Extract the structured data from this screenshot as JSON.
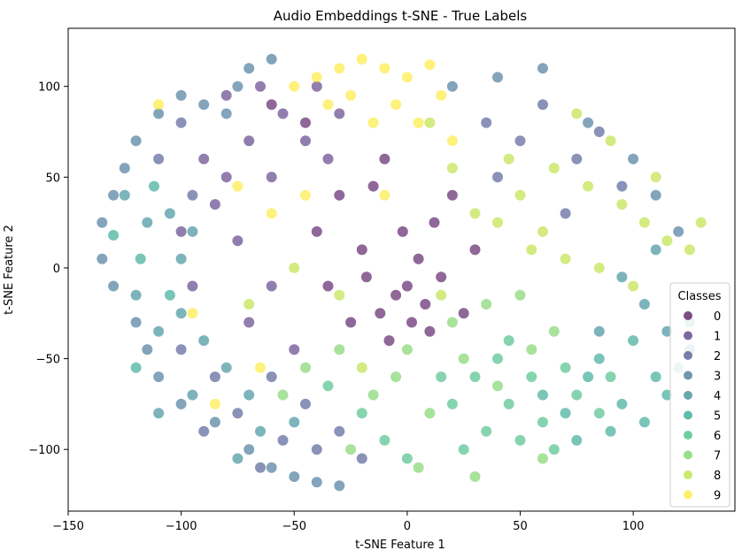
{
  "chart_data": {
    "type": "scatter",
    "title": "Audio Embeddings t-SNE - True Labels",
    "xlabel": "t-SNE Feature 1",
    "ylabel": "t-SNE Feature 2",
    "xlim": [
      -150,
      145
    ],
    "ylim": [
      -134,
      132
    ],
    "xticks": [
      -150,
      -100,
      -50,
      0,
      50,
      100
    ],
    "yticks": [
      -100,
      -50,
      0,
      50,
      100
    ],
    "xtick_labels": [
      "−150",
      "−100",
      "−50",
      "0",
      "50",
      "100"
    ],
    "ytick_labels": [
      "−100",
      "−50",
      "0",
      "50",
      "100"
    ],
    "grid": false,
    "point_alpha": 0.6,
    "legend": {
      "title": "Classes",
      "placement": "lower-right",
      "entries": [
        "0",
        "1",
        "2",
        "3",
        "4",
        "5",
        "6",
        "7",
        "8",
        "9"
      ]
    },
    "colormap": "viridis",
    "class_colors": [
      "#440154",
      "#482878",
      "#3e4989",
      "#31688e",
      "#26828e",
      "#1f9e89",
      "#35b779",
      "#6ece58",
      "#b5de2b",
      "#fde725"
    ],
    "series": [
      {
        "name": "0",
        "points": [
          [
            -5,
            -15
          ],
          [
            -12,
            -25
          ],
          [
            2,
            -30
          ],
          [
            -18,
            -5
          ],
          [
            8,
            -20
          ],
          [
            -30,
            40
          ],
          [
            -10,
            60
          ],
          [
            12,
            25
          ],
          [
            -20,
            10
          ],
          [
            5,
            5
          ],
          [
            -8,
            -40
          ],
          [
            15,
            -5
          ],
          [
            -25,
            -30
          ],
          [
            20,
            40
          ],
          [
            -45,
            80
          ],
          [
            -60,
            90
          ],
          [
            -2,
            20
          ],
          [
            25,
            -25
          ],
          [
            -15,
            45
          ],
          [
            30,
            10
          ],
          [
            -35,
            -10
          ],
          [
            10,
            -35
          ],
          [
            -40,
            20
          ],
          [
            0,
            -10
          ]
        ]
      },
      {
        "name": "1",
        "points": [
          [
            -65,
            100
          ],
          [
            -80,
            95
          ],
          [
            -55,
            85
          ],
          [
            -70,
            70
          ],
          [
            -90,
            60
          ],
          [
            -85,
            35
          ],
          [
            -60,
            50
          ],
          [
            -75,
            15
          ],
          [
            -45,
            70
          ],
          [
            -40,
            100
          ],
          [
            -95,
            -10
          ],
          [
            -70,
            -30
          ],
          [
            -50,
            -45
          ],
          [
            -30,
            85
          ],
          [
            -100,
            20
          ],
          [
            -60,
            -10
          ],
          [
            -80,
            50
          ],
          [
            -35,
            60
          ]
        ]
      },
      {
        "name": "2",
        "points": [
          [
            -100,
            80
          ],
          [
            -110,
            60
          ],
          [
            -95,
            40
          ],
          [
            -85,
            -60
          ],
          [
            -75,
            -80
          ],
          [
            -55,
            -95
          ],
          [
            -45,
            -75
          ],
          [
            -60,
            -60
          ],
          [
            -40,
            -100
          ],
          [
            -20,
            -105
          ],
          [
            -30,
            -90
          ],
          [
            -100,
            -45
          ],
          [
            -65,
            -110
          ],
          [
            -90,
            -90
          ],
          [
            35,
            80
          ],
          [
            50,
            70
          ],
          [
            60,
            90
          ],
          [
            75,
            60
          ],
          [
            85,
            75
          ],
          [
            40,
            50
          ],
          [
            70,
            30
          ],
          [
            95,
            45
          ]
        ]
      },
      {
        "name": "3",
        "points": [
          [
            -120,
            70
          ],
          [
            -110,
            85
          ],
          [
            -100,
            95
          ],
          [
            -90,
            90
          ],
          [
            -80,
            85
          ],
          [
            -75,
            100
          ],
          [
            -70,
            110
          ],
          [
            -60,
            115
          ],
          [
            -125,
            55
          ],
          [
            -130,
            40
          ],
          [
            -135,
            25
          ],
          [
            -135,
            5
          ],
          [
            -130,
            -10
          ],
          [
            -120,
            -30
          ],
          [
            -115,
            -45
          ],
          [
            -110,
            -60
          ],
          [
            -100,
            -75
          ],
          [
            -85,
            -85
          ],
          [
            -70,
            -100
          ],
          [
            -60,
            -110
          ],
          [
            -50,
            -115
          ],
          [
            -40,
            -118
          ],
          [
            -30,
            -120
          ],
          [
            20,
            100
          ],
          [
            40,
            105
          ],
          [
            60,
            110
          ],
          [
            80,
            80
          ],
          [
            100,
            60
          ],
          [
            110,
            40
          ],
          [
            120,
            20
          ]
        ]
      },
      {
        "name": "4",
        "points": [
          [
            -125,
            40
          ],
          [
            -115,
            25
          ],
          [
            -105,
            30
          ],
          [
            -95,
            20
          ],
          [
            -100,
            5
          ],
          [
            -120,
            -15
          ],
          [
            -110,
            -35
          ],
          [
            -100,
            -25
          ],
          [
            -90,
            -40
          ],
          [
            -80,
            -55
          ],
          [
            -70,
            -70
          ],
          [
            -95,
            -70
          ],
          [
            -110,
            -80
          ],
          [
            -75,
            -105
          ],
          [
            -50,
            -85
          ],
          [
            -65,
            -90
          ],
          [
            105,
            -20
          ],
          [
            115,
            -35
          ],
          [
            125,
            -45
          ],
          [
            95,
            -5
          ],
          [
            110,
            10
          ],
          [
            85,
            -35
          ]
        ]
      },
      {
        "name": "5",
        "points": [
          [
            -118,
            5
          ],
          [
            -130,
            18
          ],
          [
            -112,
            45
          ],
          [
            -105,
            -15
          ],
          [
            -120,
            -55
          ],
          [
            80,
            -60
          ],
          [
            95,
            -75
          ],
          [
            105,
            -85
          ],
          [
            90,
            -90
          ],
          [
            70,
            -80
          ],
          [
            110,
            -60
          ],
          [
            115,
            -70
          ],
          [
            85,
            -50
          ],
          [
            100,
            -40
          ],
          [
            60,
            -70
          ],
          [
            75,
            -95
          ],
          [
            120,
            -55
          ],
          [
            125,
            -30
          ]
        ]
      },
      {
        "name": "6",
        "points": [
          [
            30,
            -60
          ],
          [
            45,
            -75
          ],
          [
            60,
            -85
          ],
          [
            75,
            -70
          ],
          [
            50,
            -95
          ],
          [
            65,
            -100
          ],
          [
            35,
            -90
          ],
          [
            20,
            -75
          ],
          [
            85,
            -80
          ],
          [
            90,
            -60
          ],
          [
            40,
            -50
          ],
          [
            55,
            -60
          ],
          [
            70,
            -55
          ],
          [
            25,
            -100
          ],
          [
            -10,
            -95
          ],
          [
            0,
            -105
          ],
          [
            -20,
            -80
          ],
          [
            -35,
            -65
          ],
          [
            15,
            -60
          ],
          [
            45,
            -40
          ]
        ]
      },
      {
        "name": "7",
        "points": [
          [
            10,
            -80
          ],
          [
            25,
            -50
          ],
          [
            40,
            -65
          ],
          [
            55,
            -45
          ],
          [
            -5,
            -60
          ],
          [
            -15,
            -70
          ],
          [
            0,
            -45
          ],
          [
            20,
            -30
          ],
          [
            35,
            -20
          ],
          [
            50,
            -15
          ],
          [
            65,
            -35
          ],
          [
            -30,
            -45
          ],
          [
            -45,
            -55
          ],
          [
            5,
            -110
          ],
          [
            30,
            -115
          ],
          [
            60,
            -105
          ],
          [
            -25,
            -100
          ],
          [
            -55,
            -70
          ]
        ]
      },
      {
        "name": "8",
        "points": [
          [
            50,
            40
          ],
          [
            65,
            55
          ],
          [
            80,
            45
          ],
          [
            95,
            35
          ],
          [
            105,
            25
          ],
          [
            115,
            15
          ],
          [
            60,
            20
          ],
          [
            70,
            5
          ],
          [
            85,
            0
          ],
          [
            100,
            -10
          ],
          [
            40,
            25
          ],
          [
            55,
            10
          ],
          [
            45,
            60
          ],
          [
            75,
            85
          ],
          [
            90,
            70
          ],
          [
            30,
            30
          ],
          [
            20,
            55
          ],
          [
            10,
            80
          ],
          [
            -30,
            -15
          ],
          [
            -50,
            0
          ],
          [
            -70,
            -20
          ],
          [
            -20,
            -55
          ],
          [
            15,
            -15
          ],
          [
            110,
            50
          ],
          [
            125,
            10
          ],
          [
            130,
            25
          ]
        ]
      },
      {
        "name": "9",
        "points": [
          [
            -40,
            105
          ],
          [
            -30,
            110
          ],
          [
            -20,
            115
          ],
          [
            -10,
            110
          ],
          [
            0,
            105
          ],
          [
            10,
            112
          ],
          [
            15,
            95
          ],
          [
            -5,
            90
          ],
          [
            -25,
            95
          ],
          [
            -35,
            90
          ],
          [
            5,
            80
          ],
          [
            -15,
            80
          ],
          [
            -50,
            100
          ],
          [
            -45,
            40
          ],
          [
            -60,
            30
          ],
          [
            -75,
            45
          ],
          [
            -10,
            40
          ],
          [
            20,
            70
          ],
          [
            -85,
            -75
          ],
          [
            -95,
            -25
          ],
          [
            -110,
            90
          ],
          [
            -65,
            -55
          ]
        ]
      }
    ]
  }
}
